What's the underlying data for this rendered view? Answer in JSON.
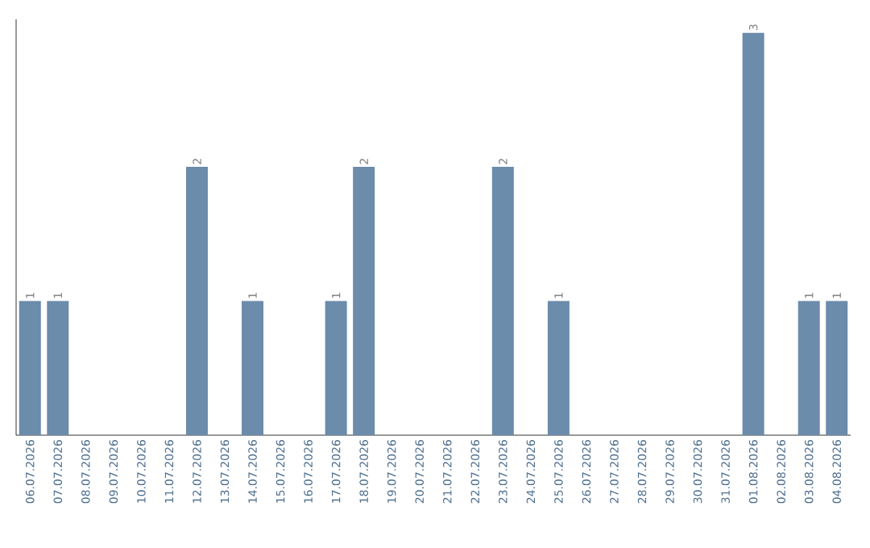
{
  "chart_data": {
    "type": "bar",
    "categories": [
      "06.07.2026",
      "07.07.2026",
      "08.07.2026",
      "09.07.2026",
      "10.07.2026",
      "11.07.2026",
      "12.07.2026",
      "13.07.2026",
      "14.07.2026",
      "15.07.2026",
      "16.07.2026",
      "17.07.2026",
      "18.07.2026",
      "19.07.2026",
      "20.07.2026",
      "21.07.2026",
      "22.07.2026",
      "23.07.2026",
      "24.07.2026",
      "25.07.2026",
      "26.07.2026",
      "27.07.2026",
      "28.07.2026",
      "29.07.2026",
      "30.07.2026",
      "31.07.2026",
      "01.08.2026",
      "02.08.2026",
      "03.08.2026",
      "04.08.2026"
    ],
    "values": [
      1,
      1,
      0,
      0,
      0,
      0,
      2,
      0,
      1,
      0,
      0,
      1,
      2,
      0,
      0,
      0,
      0,
      2,
      0,
      1,
      0,
      0,
      0,
      0,
      0,
      0,
      3,
      0,
      1,
      1
    ],
    "value_labels": [
      "1",
      "1",
      null,
      null,
      null,
      null,
      "2",
      null,
      "1",
      null,
      null,
      "1",
      "2",
      null,
      null,
      null,
      null,
      "2",
      null,
      "1",
      null,
      null,
      null,
      null,
      null,
      null,
      "3",
      null,
      "1",
      "1"
    ],
    "color": "#6b8cab",
    "ylim": [
      0,
      3.1
    ],
    "tick_labels": "x",
    "grid": false
  }
}
